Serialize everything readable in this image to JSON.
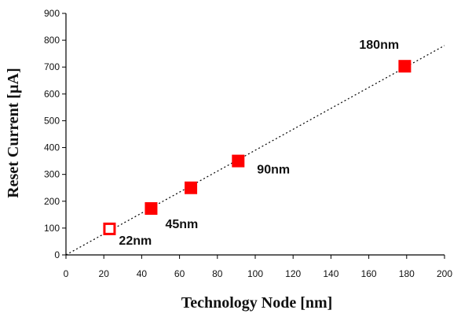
{
  "chart_data": {
    "type": "scatter",
    "title": "",
    "xlabel": "Technology Node [nm]",
    "ylabel": "Reset Current [µA]",
    "xlim": [
      0,
      200
    ],
    "ylim": [
      0,
      900
    ],
    "x_ticks": [
      0,
      20,
      40,
      60,
      80,
      100,
      120,
      140,
      160,
      180,
      200
    ],
    "y_ticks": [
      0,
      100,
      200,
      300,
      400,
      500,
      600,
      700,
      800,
      900
    ],
    "grid": false,
    "legend": "none",
    "marker_color": "#ff0000",
    "trendline": {
      "style": "dotted",
      "color": "#000000",
      "from": [
        0,
        0
      ],
      "to": [
        200,
        780
      ]
    },
    "points": [
      {
        "x": 23,
        "y": 97,
        "filled": false,
        "label": "22nm",
        "label_color": "#e8542a"
      },
      {
        "x": 45,
        "y": 173,
        "filled": true,
        "label": "45nm",
        "label_color": "#111111"
      },
      {
        "x": 66,
        "y": 250,
        "filled": true,
        "label": "",
        "label_color": "#111111"
      },
      {
        "x": 91,
        "y": 350,
        "filled": true,
        "label": "90nm",
        "label_color": "#111111"
      },
      {
        "x": 179,
        "y": 703,
        "filled": true,
        "label": "180nm",
        "label_color": "#111111"
      }
    ]
  }
}
